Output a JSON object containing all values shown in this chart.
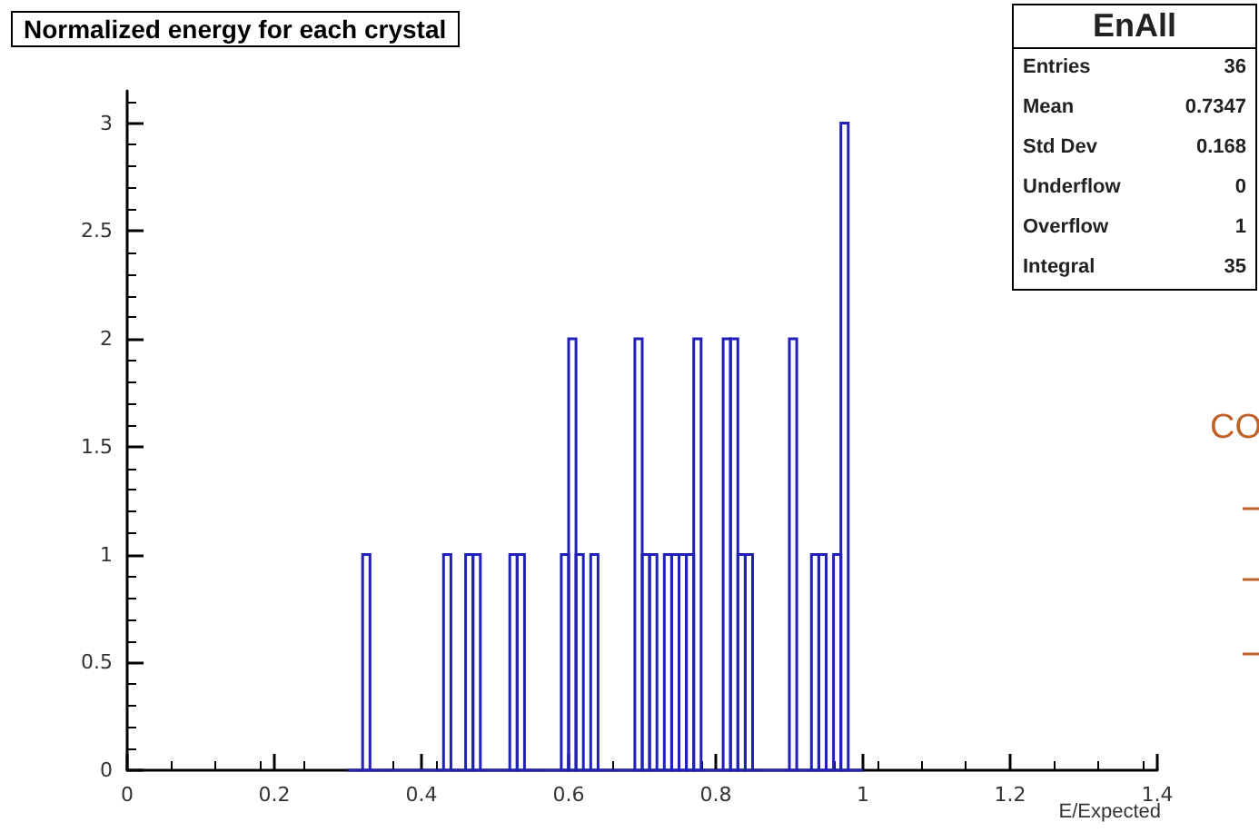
{
  "chart_data": {
    "type": "histogram",
    "title": "Normalized energy for each crystal",
    "xlabel": "E/Expected",
    "bins": [
      0.3,
      0.31,
      0.32,
      0.33,
      0.34,
      0.35,
      0.36,
      0.37,
      0.38,
      0.39,
      0.4,
      0.41,
      0.42,
      0.43,
      0.44,
      0.45,
      0.46,
      0.47,
      0.48,
      0.49,
      0.5,
      0.51,
      0.52,
      0.53,
      0.54,
      0.55,
      0.56,
      0.57,
      0.58,
      0.59,
      0.6,
      0.61,
      0.62,
      0.63,
      0.64,
      0.65,
      0.66,
      0.67,
      0.68,
      0.69,
      0.7,
      0.71,
      0.72,
      0.73,
      0.74,
      0.75,
      0.76,
      0.77,
      0.78,
      0.79,
      0.8,
      0.81,
      0.82,
      0.83,
      0.84,
      0.85,
      0.86,
      0.87,
      0.88,
      0.89,
      0.9,
      0.91,
      0.92,
      0.93,
      0.94,
      0.95,
      0.96,
      0.97,
      0.98,
      0.99,
      1.0
    ],
    "values": [
      0,
      0,
      1,
      0,
      0,
      0,
      0,
      0,
      0,
      0,
      0,
      0,
      0,
      1,
      0,
      0,
      1,
      1,
      0,
      0,
      0,
      0,
      1,
      1,
      0,
      0,
      0,
      0,
      0,
      1,
      2,
      1,
      0,
      1,
      0,
      0,
      0,
      0,
      0,
      2,
      1,
      1,
      0,
      1,
      1,
      1,
      1,
      2,
      0,
      0,
      0,
      2,
      2,
      1,
      1,
      0,
      0,
      0,
      0,
      0,
      2,
      0,
      0,
      1,
      1,
      0,
      1,
      3,
      0,
      0
    ],
    "color": "#2121b8",
    "xlim": [
      0,
      1.4
    ],
    "xticks": [
      0,
      0.2,
      0.4,
      0.6,
      0.8,
      1,
      1.2,
      1.4
    ],
    "ylim": [
      0,
      3.15
    ],
    "yticks": [
      0,
      0.5,
      1,
      1.5,
      2,
      2.5,
      3
    ],
    "grid": false,
    "annotations": [
      "EnAll",
      "Entries",
      "36",
      "Mean",
      "0.7347",
      "Std Dev",
      "0.168",
      "Underflow",
      "0",
      "Overflow",
      "1",
      "Integral",
      "35",
      "CO"
    ]
  }
}
